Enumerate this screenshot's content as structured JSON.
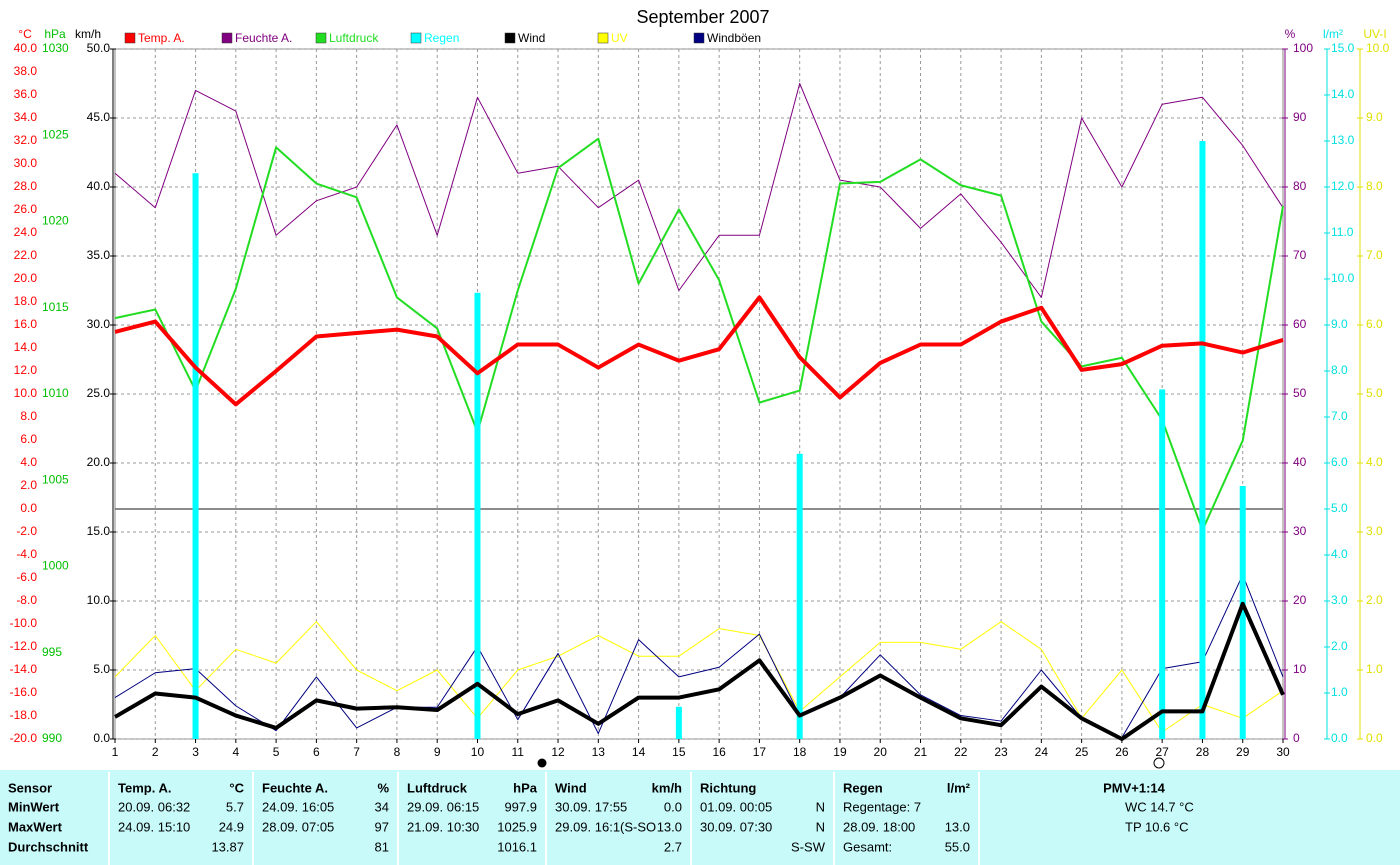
{
  "chart_data": {
    "type": "line",
    "title": "September 2007",
    "categories": [
      1,
      2,
      3,
      4,
      5,
      6,
      7,
      8,
      9,
      10,
      11,
      12,
      13,
      14,
      15,
      16,
      17,
      18,
      19,
      20,
      21,
      22,
      23,
      24,
      25,
      26,
      27,
      28,
      29,
      30
    ],
    "grid": true,
    "axes": {
      "temp": {
        "label": "°C",
        "color": "#ff0000",
        "lim": [
          -20,
          40
        ],
        "ticks": [
          {
            "value": 40,
            "label": "40.0"
          },
          {
            "value": 38,
            "label": "38.0"
          },
          {
            "value": 36,
            "label": "36.0"
          },
          {
            "value": 34,
            "label": "34.0"
          },
          {
            "value": 32,
            "label": "32.0"
          },
          {
            "value": 30,
            "label": "30.0"
          },
          {
            "value": 28,
            "label": "28.0"
          },
          {
            "value": 26,
            "label": "26.0"
          },
          {
            "value": 24,
            "label": "24.0"
          },
          {
            "value": 22,
            "label": "22.0"
          },
          {
            "value": 20,
            "label": "20.0"
          },
          {
            "value": 18,
            "label": "18.0"
          },
          {
            "value": 16,
            "label": "16.0"
          },
          {
            "value": 14,
            "label": "14.0"
          },
          {
            "value": 12,
            "label": "12.0"
          },
          {
            "value": 10,
            "label": "10.0"
          },
          {
            "value": 8,
            "label": "8.0"
          },
          {
            "value": 6,
            "label": "6.0"
          },
          {
            "value": 4,
            "label": "4.0"
          },
          {
            "value": 2,
            "label": "2.0"
          },
          {
            "value": 0,
            "label": "0.0"
          },
          {
            "value": -2,
            "label": "-2.0"
          },
          {
            "value": -4,
            "label": "-4.0"
          },
          {
            "value": -6,
            "label": "-6.0"
          },
          {
            "value": -8,
            "label": "-8.0"
          },
          {
            "value": -10,
            "label": "-10.0"
          },
          {
            "value": -12,
            "label": "-12.0"
          },
          {
            "value": -14,
            "label": "-14.0"
          },
          {
            "value": -16,
            "label": "-16.0"
          },
          {
            "value": -18,
            "label": "-18.0"
          },
          {
            "value": -20,
            "label": "-20.0"
          }
        ]
      },
      "hpa": {
        "label": "hPa",
        "color": "#00c000",
        "lim": [
          990,
          1030
        ],
        "ticks": [
          1030,
          1025,
          1020,
          1015,
          1010,
          1005,
          1000,
          995,
          990
        ]
      },
      "kmh": {
        "label": "km/h",
        "color": "#000000",
        "lim": [
          0,
          50
        ],
        "ticks": [
          {
            "value": 50,
            "label": "50.0"
          },
          {
            "value": 45,
            "label": "45.0"
          },
          {
            "value": 40,
            "label": "40.0"
          },
          {
            "value": 35,
            "label": "35.0"
          },
          {
            "value": 30,
            "label": "30.0"
          },
          {
            "value": 25,
            "label": "25.0"
          },
          {
            "value": 20,
            "label": "20.0"
          },
          {
            "value": 15,
            "label": "15.0"
          },
          {
            "value": 10,
            "label": "10.0"
          },
          {
            "value": 5,
            "label": "5.0"
          },
          {
            "value": 0,
            "label": "0.0"
          }
        ]
      },
      "pct": {
        "label": "%",
        "color": "#800080",
        "lim": [
          0,
          100
        ],
        "ticks": [
          100,
          90,
          80,
          70,
          60,
          50,
          40,
          30,
          20,
          10,
          0
        ]
      },
      "rain": {
        "label": "l/m²",
        "color": "#00e0e0",
        "lim": [
          0,
          15
        ],
        "ticks": [
          {
            "value": 15,
            "label": "15.0"
          },
          {
            "value": 14,
            "label": "14.0"
          },
          {
            "value": 13,
            "label": "13.0"
          },
          {
            "value": 12,
            "label": "12.0"
          },
          {
            "value": 11,
            "label": "11.0"
          },
          {
            "value": 10,
            "label": "10.0"
          },
          {
            "value": 9,
            "label": "9.0"
          },
          {
            "value": 8,
            "label": "8.0"
          },
          {
            "value": 7,
            "label": "7.0"
          },
          {
            "value": 6,
            "label": "6.0"
          },
          {
            "value": 5,
            "label": "5.0"
          },
          {
            "value": 4,
            "label": "4.0"
          },
          {
            "value": 3,
            "label": "3.0"
          },
          {
            "value": 2,
            "label": "2.0"
          },
          {
            "value": 1,
            "label": "1.0"
          },
          {
            "value": 0,
            "label": "0.0"
          }
        ]
      },
      "uv": {
        "label": "UV-I",
        "color": "#e0e000",
        "lim": [
          0,
          10
        ],
        "ticks": [
          {
            "value": 10,
            "label": "10.0"
          },
          {
            "value": 9,
            "label": "9.0"
          },
          {
            "value": 8,
            "label": "8.0"
          },
          {
            "value": 7,
            "label": "7.0"
          },
          {
            "value": 6,
            "label": "6.0"
          },
          {
            "value": 5,
            "label": "5.0"
          },
          {
            "value": 4,
            "label": "4.0"
          },
          {
            "value": 3,
            "label": "3.0"
          },
          {
            "value": 2,
            "label": "2.0"
          },
          {
            "value": 1,
            "label": "1.0"
          },
          {
            "value": 0,
            "label": "0.0"
          }
        ]
      }
    },
    "series": [
      {
        "name": "Temp. A.",
        "color": "#ff0000",
        "axis": "temp",
        "width": 4,
        "values": [
          15.4,
          16.3,
          12.3,
          9.1,
          12.0,
          15.0,
          15.3,
          15.6,
          15.0,
          11.8,
          14.3,
          14.3,
          12.3,
          14.3,
          12.9,
          13.9,
          18.4,
          13.2,
          9.7,
          12.7,
          14.3,
          14.3,
          16.3,
          17.5,
          12.1,
          12.6,
          14.2,
          14.4,
          13.6,
          14.7
        ]
      },
      {
        "name": "Feuchte A.",
        "color": "#800080",
        "axis": "pct",
        "width": 1,
        "values": [
          82,
          77,
          94,
          91,
          73,
          78,
          80,
          89,
          73,
          93,
          82,
          83,
          77,
          81,
          65,
          73,
          73,
          95,
          81,
          80,
          74,
          79,
          72,
          64,
          90,
          80,
          92,
          93,
          86,
          77
        ]
      },
      {
        "name": "Luftdruck",
        "color": "#22dd22",
        "axis": "hpa",
        "width": 2,
        "values": [
          1014.4,
          1014.9,
          1010.2,
          1016.1,
          1024.3,
          1022.2,
          1021.4,
          1015.6,
          1013.8,
          1007.8,
          1016.0,
          1023.1,
          1024.8,
          1016.4,
          1020.7,
          1016.6,
          1009.5,
          1010.2,
          1022.2,
          1022.3,
          1023.6,
          1022.1,
          1021.5,
          1014.2,
          1011.6,
          1012.1,
          1008.5,
          1002.1,
          1007.3,
          1020.9
        ]
      },
      {
        "name": "Regen",
        "color": "#00ffff",
        "axis": "rain",
        "type": "bar",
        "values": [
          0,
          0,
          12.3,
          0,
          0,
          0,
          0,
          0,
          0,
          9.7,
          0,
          0,
          0,
          0,
          0.7,
          0,
          0,
          6.2,
          0,
          0,
          0,
          0,
          0,
          0,
          0,
          0,
          7.6,
          13.0,
          5.5,
          0
        ]
      },
      {
        "name": "Wind",
        "color": "#000000",
        "axis": "kmh",
        "width": 4,
        "values": [
          1.6,
          3.3,
          3.0,
          1.7,
          0.8,
          2.8,
          2.2,
          2.3,
          2.1,
          4.0,
          1.8,
          2.8,
          1.1,
          3.0,
          3.0,
          3.6,
          5.7,
          1.7,
          3.0,
          4.6,
          3.0,
          1.5,
          1.0,
          3.8,
          1.5,
          0.0,
          2.0,
          2.0,
          9.8,
          3.2
        ]
      },
      {
        "name": "UV",
        "color": "#ffff00",
        "axis": "uv",
        "width": 1,
        "values": [
          0.9,
          1.5,
          0.7,
          1.3,
          1.1,
          1.7,
          1.0,
          0.7,
          1.0,
          0.3,
          1.0,
          1.2,
          1.5,
          1.2,
          1.2,
          1.6,
          1.5,
          0.4,
          0.9,
          1.4,
          1.4,
          1.3,
          1.7,
          1.3,
          0.3,
          1.0,
          0.1,
          0.5,
          0.3,
          0.7
        ]
      },
      {
        "name": "Windböen",
        "color": "#000080",
        "axis": "kmh",
        "width": 1,
        "values": [
          3.0,
          4.8,
          5.1,
          2.4,
          0.6,
          4.5,
          0.8,
          2.3,
          2.3,
          6.7,
          1.4,
          6.2,
          0.4,
          7.2,
          4.5,
          5.2,
          7.6,
          1.7,
          3.0,
          6.1,
          3.2,
          1.7,
          1.3,
          5.0,
          1.5,
          0.1,
          5.1,
          5.6,
          11.9,
          4.5
        ]
      }
    ]
  },
  "table": {
    "columns": [
      {
        "name": "Sensor"
      },
      {
        "name": "Temp. A.",
        "unit": "°C"
      },
      {
        "name": "Feuchte A.",
        "unit": "%"
      },
      {
        "name": "Luftdruck",
        "unit": "hPa"
      },
      {
        "name": "Wind",
        "unit": "km/h"
      },
      {
        "name": "Richtung"
      },
      {
        "name": "Regen",
        "unit": "l/m²"
      },
      {
        "name": "PMV+1:14"
      }
    ],
    "rows": [
      {
        "label": "MinWert",
        "cells": [
          {
            "l": "20.09. 06:32",
            "r": "5.7"
          },
          {
            "l": "24.09. 16:05",
            "r": "34"
          },
          {
            "l": "29.09. 06:15",
            "r": "997.9"
          },
          {
            "l": "30.09. 17:55",
            "r": "0.0"
          },
          {
            "l": "01.09. 00:05",
            "r": "N"
          },
          {
            "l": "Regentage: 7"
          },
          {
            "l": "WC 14.7 °C"
          }
        ]
      },
      {
        "label": "MaxWert",
        "cells": [
          {
            "l": "24.09. 15:10",
            "r": "24.9"
          },
          {
            "l": "28.09. 07:05",
            "r": "97"
          },
          {
            "l": "21.09. 10:30",
            "r": "1025.9"
          },
          {
            "l": "29.09. 16:1(S-SO",
            "r": "13.0"
          },
          {
            "l": "30.09. 07:30",
            "r": "N"
          },
          {
            "l": "28.09. 18:00",
            "r": "13.0"
          },
          {
            "l": "TP 10.6 °C"
          }
        ]
      },
      {
        "label": "Durchschnitt",
        "cells": [
          {
            "r": "13.87"
          },
          {
            "r": "81"
          },
          {
            "r": "1016.1"
          },
          {
            "r": "2.7"
          },
          {
            "r": "S-SW"
          },
          {
            "l": "Gesamt:",
            "r": "55.0"
          },
          {}
        ]
      }
    ]
  }
}
